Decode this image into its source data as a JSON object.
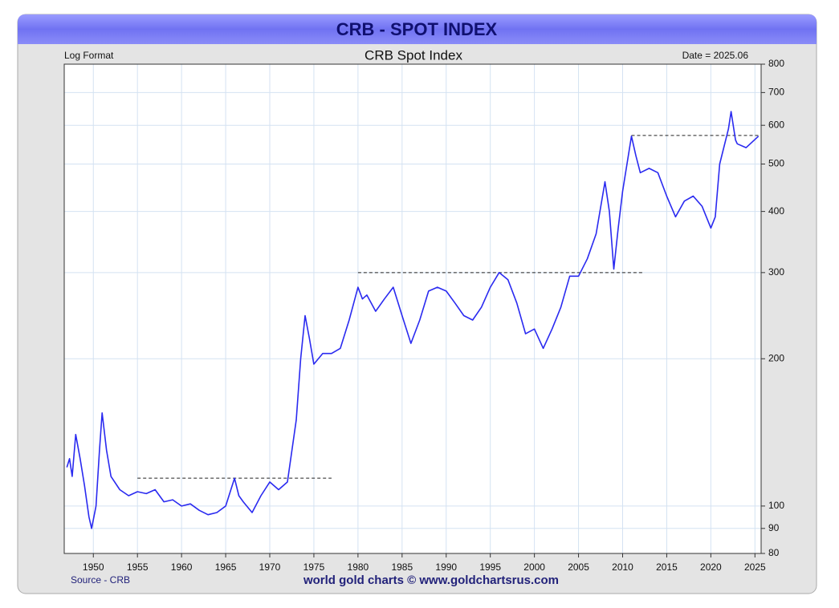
{
  "chart_data": {
    "type": "line",
    "title": "CRB - SPOT INDEX",
    "subtitle": "CRB Spot Index",
    "scale_label": "Log Format",
    "date_label": "Date = 2025.06",
    "source": "Source - CRB",
    "footer": "world gold charts © www.goldchartsrus.com",
    "log_scale": true,
    "grid": true,
    "series": [
      {
        "name": "CRB Spot Index",
        "color": "#2a2af0",
        "x": [
          1947.0,
          1947.3,
          1947.6,
          1948.0,
          1948.5,
          1949.0,
          1949.5,
          1949.8,
          1950.3,
          1950.7,
          1951.0,
          1951.5,
          1952,
          1953,
          1954,
          1955,
          1956,
          1957,
          1958,
          1959,
          1960,
          1961,
          1962,
          1963,
          1964,
          1965,
          1966,
          1966.5,
          1967,
          1968,
          1969,
          1970,
          1971,
          1972,
          1973,
          1973.5,
          1974,
          1974.5,
          1975,
          1976,
          1977,
          1978,
          1979,
          1980,
          1980.5,
          1981,
          1982,
          1983,
          1984,
          1985,
          1986,
          1987,
          1988,
          1989,
          1990,
          1991,
          1992,
          1993,
          1994,
          1995,
          1996,
          1997,
          1998,
          1999,
          2000,
          2001,
          2002,
          2003,
          2004,
          2005,
          2006,
          2007,
          2008,
          2008.5,
          2009,
          2009.5,
          2010,
          2011,
          2011.5,
          2012,
          2013,
          2014,
          2015,
          2016,
          2017,
          2018,
          2019,
          2020,
          2020.5,
          2021,
          2022,
          2022.3,
          2022.8,
          2023,
          2024,
          2025.4
        ],
        "values": [
          120,
          125,
          115,
          140,
          125,
          110,
          95,
          90,
          100,
          130,
          155,
          130,
          115,
          108,
          105,
          107,
          106,
          108,
          102,
          103,
          100,
          101,
          98,
          96,
          97,
          100,
          114,
          105,
          102,
          97,
          105,
          112,
          108,
          112,
          150,
          200,
          245,
          220,
          195,
          205,
          205,
          210,
          240,
          280,
          265,
          270,
          250,
          265,
          280,
          245,
          215,
          240,
          275,
          280,
          275,
          260,
          245,
          240,
          255,
          280,
          300,
          290,
          260,
          225,
          230,
          210,
          230,
          255,
          295,
          295,
          320,
          360,
          460,
          400,
          305,
          370,
          440,
          570,
          520,
          480,
          490,
          480,
          430,
          390,
          420,
          430,
          410,
          370,
          390,
          500,
          590,
          640,
          560,
          550,
          540,
          570
        ]
      }
    ],
    "reference_lines": [
      {
        "y": 114,
        "x": [
          1955,
          1977
        ]
      },
      {
        "y": 300,
        "x": [
          1980,
          2012.3
        ]
      },
      {
        "y": 572,
        "x": [
          2011,
          2025.5
        ]
      }
    ],
    "xlim": [
      1946.7,
      2025.7
    ],
    "xticks": [
      1950,
      1955,
      1960,
      1965,
      1970,
      1975,
      1980,
      1985,
      1990,
      1995,
      2000,
      2005,
      2010,
      2015,
      2020,
      2025
    ],
    "ylim": [
      80,
      800
    ],
    "yticks": [
      80,
      90,
      100,
      200,
      300,
      400,
      500,
      600,
      700,
      800
    ]
  }
}
